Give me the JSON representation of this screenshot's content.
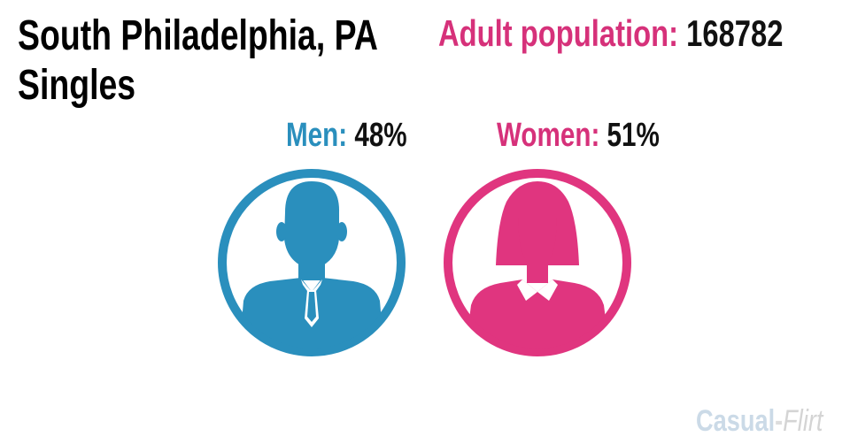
{
  "header": {
    "title_line_1": "South Philadelphia, PA",
    "title_line_2": "Singles"
  },
  "population": {
    "label": "Adult population:",
    "value": "168782"
  },
  "men": {
    "label": "Men:",
    "value": "48%"
  },
  "women": {
    "label": "Women:",
    "value": "51%"
  },
  "logo": {
    "part_1": "Casual",
    "separator": "-",
    "part_2": "Flirt"
  }
}
